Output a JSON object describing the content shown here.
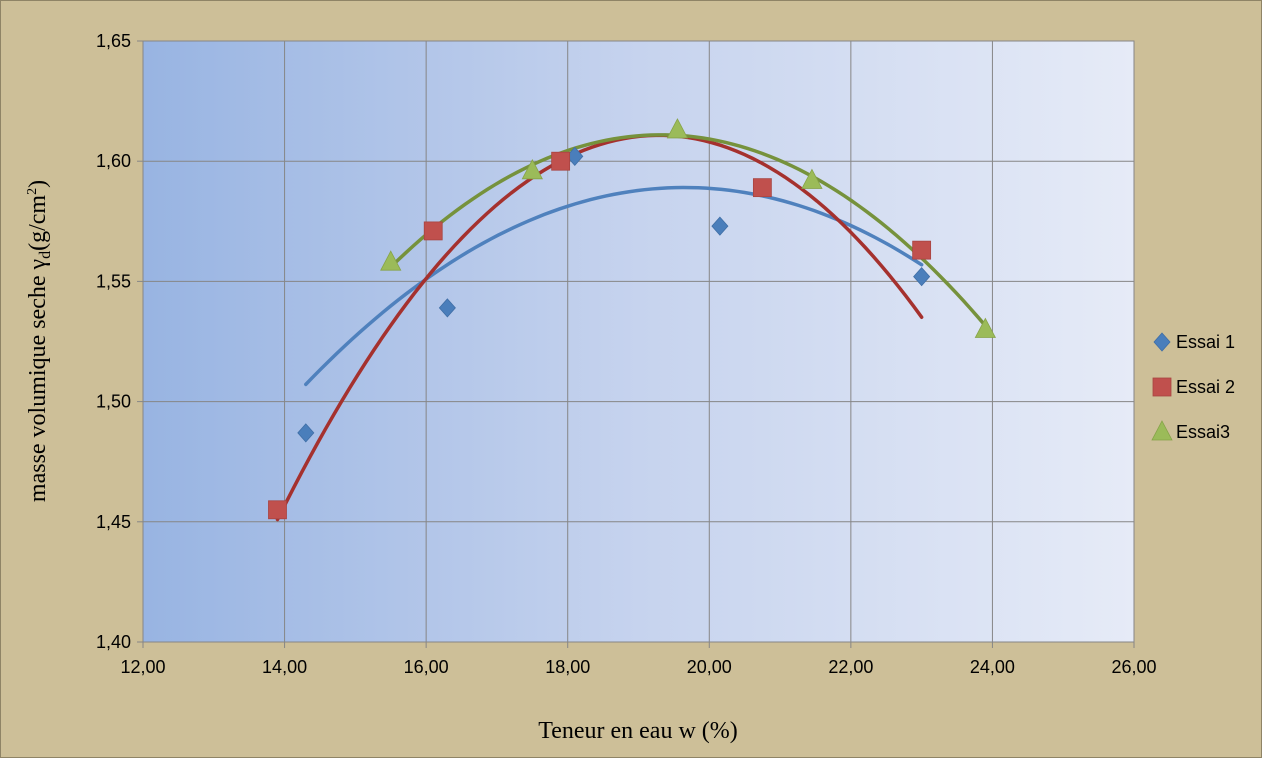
{
  "chart_data": {
    "type": "scatter",
    "title": "",
    "xlabel": "Teneur en eau w (%)",
    "ylabel": "masse volumique seche γ",
    "ylabel_sub": "d",
    "ylabel_unit": "(g/cm",
    "ylabel_sup": "2",
    "ylabel_close": ")",
    "xlim": [
      12,
      26
    ],
    "ylim": [
      1.4,
      1.65
    ],
    "x_ticks": [
      12,
      14,
      16,
      18,
      20,
      22,
      24,
      26
    ],
    "x_tick_labels": [
      "12,00",
      "14,00",
      "16,00",
      "18,00",
      "20,00",
      "22,00",
      "24,00",
      "26,00"
    ],
    "y_ticks": [
      1.4,
      1.45,
      1.5,
      1.55,
      1.6,
      1.65
    ],
    "y_tick_labels": [
      "1,40",
      "1,45",
      "1,50",
      "1,55",
      "1,60",
      "1,65"
    ],
    "grid": true,
    "legend_position": "right",
    "trendline": "polynomial order 2",
    "series": [
      {
        "name": "Essai 1",
        "marker": "diamond",
        "color": "#4a7ebb",
        "trend_color": "#4f81bd",
        "points": [
          [
            14.3,
            1.487
          ],
          [
            16.3,
            1.539
          ],
          [
            18.1,
            1.602
          ],
          [
            20.15,
            1.573
          ],
          [
            23.0,
            1.552
          ]
        ],
        "trend_coef": [
          -0.002862,
          0.11247,
          0.4841
        ],
        "trend_range": [
          14.3,
          23.0
        ]
      },
      {
        "name": "Essai 2",
        "marker": "square",
        "color": "#c0504d",
        "trend_color": "#a5312e",
        "points": [
          [
            13.9,
            1.455
          ],
          [
            16.1,
            1.571
          ],
          [
            17.9,
            1.6
          ],
          [
            20.75,
            1.589
          ],
          [
            23.0,
            1.563
          ]
        ],
        "trend_coef": [
          -0.0055,
          0.2122,
          -0.436
        ],
        "trend_range": [
          13.9,
          23.0
        ]
      },
      {
        "name": "Essai3",
        "marker": "triangle",
        "color": "#9bbb59",
        "trend_color": "#76923c",
        "points": [
          [
            15.5,
            1.558
          ],
          [
            17.5,
            1.596
          ],
          [
            19.55,
            1.613
          ],
          [
            21.45,
            1.592
          ],
          [
            23.9,
            1.53
          ]
        ],
        "trend_coef": [
          -0.003778,
          0.14595,
          0.2014
        ],
        "trend_range": [
          15.5,
          23.9
        ]
      }
    ]
  }
}
